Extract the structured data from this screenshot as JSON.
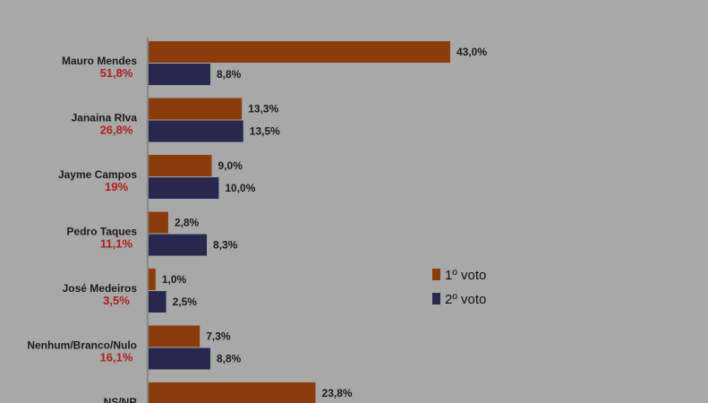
{
  "chart_data": {
    "type": "bar",
    "orientation": "horizontal",
    "categories": [
      "Mauro Mendes",
      "Janaina RIva",
      "Jayme Campos",
      "Pedro Taques",
      "José Medeiros",
      "Nenhum/Branco/Nulo",
      "NS/NR"
    ],
    "totals": [
      "51,8%",
      "26,8%",
      "19%",
      "11,1%",
      "3,5%",
      "16,1%",
      ""
    ],
    "series": [
      {
        "name": "1º voto",
        "values": [
          43.0,
          13.3,
          9.0,
          2.8,
          1.0,
          7.3,
          23.8
        ],
        "labels": [
          "43,0%",
          "13,3%",
          "9,0%",
          "2,8%",
          "1,0%",
          "7,3%",
          "23,8%"
        ]
      },
      {
        "name": "2º voto",
        "values": [
          8.8,
          13.5,
          10.0,
          8.3,
          2.5,
          8.8,
          null
        ],
        "labels": [
          "8,8%",
          "13,5%",
          "10,0%",
          "8,3%",
          "2,5%",
          "8,8%",
          ""
        ]
      }
    ],
    "xlim": [
      0,
      80
    ],
    "grid": false,
    "legend_placement": "right",
    "colors": {
      "series1": "#8a3d0b",
      "series2": "#28284f",
      "background": "#a8a8a8",
      "totals": "#b01c1c"
    }
  }
}
